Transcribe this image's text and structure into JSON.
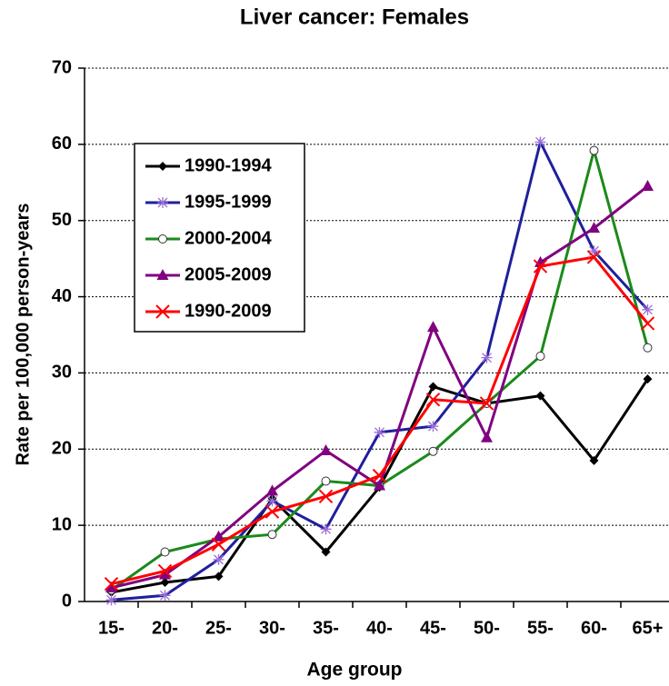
{
  "chart_data": {
    "type": "line",
    "title": "Liver cancer: Females",
    "x_label": "Age group",
    "y_label": "Rate per 100,000 person-years",
    "categories": [
      "15-",
      "20-",
      "25-",
      "30-",
      "35-",
      "40-",
      "45-",
      "50-",
      "55-",
      "60-",
      "65+"
    ],
    "ylim": [
      0,
      70
    ],
    "yticks": [
      0,
      10,
      20,
      30,
      40,
      50,
      60,
      70
    ],
    "grid": true,
    "legend": "upper left",
    "series": [
      {
        "name": "1990-1994",
        "color": "#000000",
        "marker": "diamond",
        "values": [
          1.2,
          2.5,
          3.3,
          13.5,
          6.5,
          15,
          28.2,
          26,
          27,
          18.5,
          29.2
        ]
      },
      {
        "name": "1995-1999",
        "color": "#1f1f9e",
        "marker": "asterisk",
        "values": [
          0.2,
          0.8,
          5.5,
          13.2,
          9.5,
          22.2,
          23,
          32,
          60.3,
          46,
          38.3
        ]
      },
      {
        "name": "2000-2004",
        "color": "#1a8a1a",
        "marker": "circle",
        "values": [
          1.5,
          6.5,
          8.2,
          8.8,
          15.8,
          15.2,
          19.7,
          26,
          32.2,
          59.2,
          33.3
        ]
      },
      {
        "name": "2005-2009",
        "color": "#800080",
        "marker": "triangle",
        "values": [
          1.8,
          3.5,
          8.5,
          14.5,
          19.8,
          15.2,
          36,
          21.5,
          44.5,
          49,
          54.5
        ]
      },
      {
        "name": "1990-2009",
        "color": "#ff0000",
        "marker": "x",
        "values": [
          2.3,
          4,
          7.5,
          11.8,
          13.8,
          16.5,
          26.5,
          26,
          44,
          45.2,
          36.5
        ]
      }
    ]
  }
}
